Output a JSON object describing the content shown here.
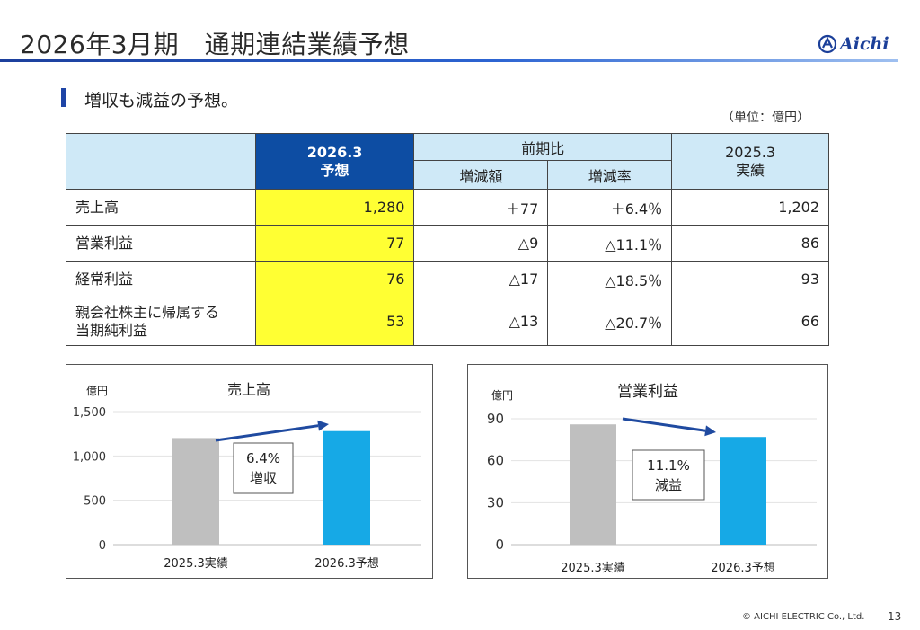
{
  "header": {
    "title": "2026年3月期　通期連結業績予想",
    "logo_text": "Aichi"
  },
  "subtitle": "増収も減益の予想。",
  "unit": "（単位：億円）",
  "table": {
    "headers": {
      "forecast_line1": "2026.3",
      "forecast_line2": "予想",
      "yoy": "前期比",
      "diff": "増減額",
      "rate": "増減率",
      "prev_line1": "2025.3",
      "prev_line2": "実績"
    },
    "rows": [
      {
        "label": [
          "売上高"
        ],
        "forecast": "1,280",
        "diff": "＋77",
        "rate": "＋6.4％",
        "prev": "1,202"
      },
      {
        "label": [
          "営業利益"
        ],
        "forecast": "77",
        "diff": "△9",
        "rate": "△11.1％",
        "prev": "86"
      },
      {
        "label": [
          "経常利益"
        ],
        "forecast": "76",
        "diff": "△17",
        "rate": "△18.5％",
        "prev": "93"
      },
      {
        "label": [
          "親会社株主に帰属する",
          "当期純利益"
        ],
        "forecast": "53",
        "diff": "△13",
        "rate": "△20.7％",
        "prev": "66"
      }
    ]
  },
  "chart_data": [
    {
      "type": "bar",
      "title": "売上高",
      "ylabel": "億円",
      "categories": [
        "2025.3実績",
        "2026.3予想"
      ],
      "values": [
        1202,
        1280
      ],
      "ylim": [
        0,
        1500
      ],
      "yticks": [
        "1,500",
        "1,000",
        "500",
        "0"
      ],
      "ytick_values": [
        1500,
        1000,
        500,
        0
      ],
      "grid": true,
      "colors": [
        "#bfbfbf",
        "#16a9e6"
      ],
      "annotation": {
        "line1": "6.4%",
        "line2": "増収"
      }
    },
    {
      "type": "bar",
      "title": "営業利益",
      "ylabel": "億円",
      "categories": [
        "2025.3実績",
        "2026.3予想"
      ],
      "values": [
        86,
        77
      ],
      "ylim": [
        0,
        90
      ],
      "yticks": [
        "90",
        "60",
        "30",
        "0"
      ],
      "ytick_values": [
        90,
        60,
        30,
        0
      ],
      "grid": true,
      "colors": [
        "#bfbfbf",
        "#16a9e6"
      ],
      "annotation": {
        "line1": "11.1%",
        "line2": "減益"
      }
    }
  ],
  "footer": {
    "copyright": "© AICHI ELECTRIC Co., Ltd.",
    "page": "13"
  },
  "colors": {
    "accent": "#1f45a6",
    "forecast_header": "#0d4da3",
    "table_header": "#cfe9f7",
    "highlight": "#ffff33",
    "arrow": "#1f4aa0"
  }
}
